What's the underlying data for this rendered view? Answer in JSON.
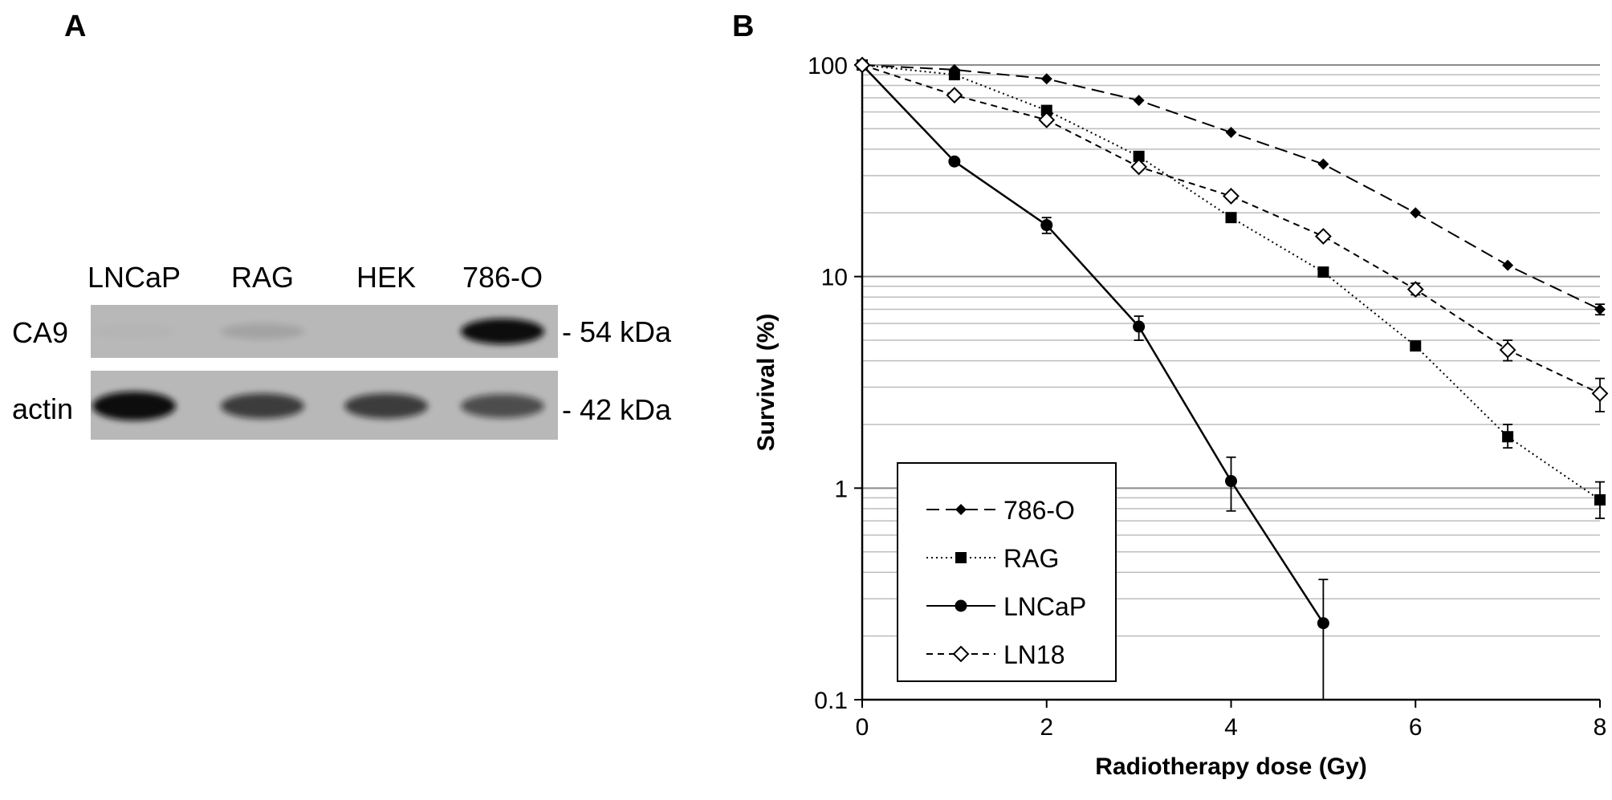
{
  "panels": {
    "a": "A",
    "b": "B"
  },
  "blot": {
    "lanes": [
      "LNCaP",
      "RAG",
      "HEK",
      "786-O"
    ],
    "rows": [
      {
        "label": "CA9",
        "marker": "- 54 kDa",
        "intensity": [
          0.02,
          0.12,
          0.0,
          1.0
        ]
      },
      {
        "label": "actin",
        "marker": "- 42 kDa",
        "intensity": [
          1.0,
          0.72,
          0.72,
          0.62
        ]
      }
    ]
  },
  "chart_data": {
    "type": "line",
    "title": "",
    "xlabel": "Radiotherapy dose (Gy)",
    "ylabel": "Survival (%)",
    "xlim": [
      0,
      8
    ],
    "ylim": [
      0.1,
      100
    ],
    "yscale": "log",
    "xticks": [
      "0",
      "2",
      "4",
      "6",
      "8"
    ],
    "yticks": [
      "0.1",
      "1",
      "10",
      "100"
    ],
    "grid": "horizontal",
    "legend": "bottom-left",
    "series": [
      {
        "name": "786-O",
        "marker": "filled-diamond",
        "line": "long-dash",
        "x": [
          0,
          1,
          2,
          3,
          4,
          5,
          6,
          7,
          8
        ],
        "y": [
          100,
          95,
          86,
          68,
          48,
          34,
          20,
          11.3,
          7.0
        ]
      },
      {
        "name": "RAG",
        "marker": "filled-square",
        "line": "dotted",
        "x": [
          0,
          1,
          2,
          3,
          4,
          5,
          6,
          7,
          8
        ],
        "y": [
          100,
          90,
          61,
          37,
          19,
          10.5,
          4.7,
          1.75,
          0.88
        ]
      },
      {
        "name": "LNCaP",
        "marker": "filled-circle",
        "line": "solid",
        "x": [
          0,
          1,
          2,
          3,
          4,
          5
        ],
        "y": [
          100,
          35,
          17.5,
          5.8,
          1.08,
          0.23
        ]
      },
      {
        "name": "LN18",
        "marker": "open-diamond",
        "line": "short-dash",
        "x": [
          0,
          1,
          2,
          3,
          4,
          5,
          6,
          7,
          8
        ],
        "y": [
          100,
          72,
          55,
          33,
          24,
          15.5,
          8.7,
          4.5,
          2.8
        ]
      }
    ],
    "error_bars": [
      {
        "series": "LNCaP",
        "x": 2,
        "low": 16.0,
        "high": 19.0
      },
      {
        "series": "LNCaP",
        "x": 3,
        "low": 5.0,
        "high": 6.5
      },
      {
        "series": "LNCaP",
        "x": 4,
        "low": 0.78,
        "high": 1.4
      },
      {
        "series": "LNCaP",
        "x": 5,
        "low": 0.1,
        "high": 0.37
      },
      {
        "series": "RAG",
        "x": 7,
        "low": 1.55,
        "high": 2.0
      },
      {
        "series": "RAG",
        "x": 8,
        "low": 0.72,
        "high": 1.07
      },
      {
        "series": "LN18",
        "x": 6,
        "low": 8.2,
        "high": 9.3
      },
      {
        "series": "LN18",
        "x": 7,
        "low": 4.0,
        "high": 5.0
      },
      {
        "series": "LN18",
        "x": 8,
        "low": 2.3,
        "high": 3.3
      },
      {
        "series": "786-O",
        "x": 8,
        "low": 6.6,
        "high": 7.4
      }
    ]
  }
}
